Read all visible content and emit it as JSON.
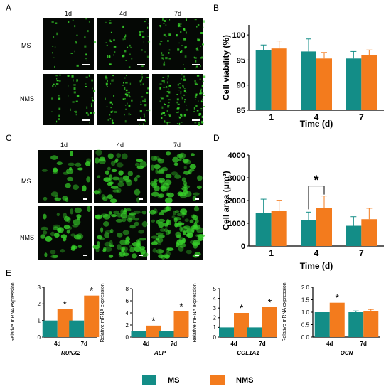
{
  "panel_letters": {
    "A": "A",
    "B": "B",
    "C": "C",
    "D": "D",
    "E": "E"
  },
  "panel_a": {
    "col_labels": [
      "1d",
      "4d",
      "7d"
    ],
    "row_labels": [
      "MS",
      "NMS"
    ]
  },
  "panel_c": {
    "col_labels": [
      "1d",
      "4d",
      "7d"
    ],
    "row_labels": [
      "MS",
      "NMS"
    ]
  },
  "colors": {
    "ms": "#138d87",
    "nms": "#f37b1d",
    "cell_green": "#37d22a"
  },
  "legend": {
    "ms": "MS",
    "nms": "NMS"
  },
  "chart_data": [
    {
      "panel": "B",
      "type": "bar",
      "categories": [
        "1",
        "4",
        "7"
      ],
      "series": [
        {
          "name": "MS",
          "values": [
            97.0,
            96.7,
            95.3
          ],
          "errors": [
            1.0,
            2.5,
            1.4
          ]
        },
        {
          "name": "NMS",
          "values": [
            97.3,
            95.3,
            96.0
          ],
          "errors": [
            1.5,
            1.2,
            1.0
          ]
        }
      ],
      "xlabel": "Time (d)",
      "ylabel": "Cell viability (%)",
      "ylim": [
        85,
        102
      ],
      "yticks": [
        85,
        90,
        95,
        100
      ]
    },
    {
      "panel": "D",
      "type": "bar",
      "categories": [
        "1",
        "4",
        "7"
      ],
      "series": [
        {
          "name": "MS",
          "values": [
            1460,
            1140,
            890
          ],
          "errors": [
            600,
            350,
            400
          ]
        },
        {
          "name": "NMS",
          "values": [
            1560,
            1680,
            1180
          ],
          "errors": [
            450,
            520,
            480
          ]
        }
      ],
      "xlabel": "Time (d)",
      "ylabel": "Cell area (μm²)",
      "ylim": [
        0,
        4000
      ],
      "yticks": [
        0,
        1000,
        2000,
        3000,
        4000
      ],
      "annotations": [
        {
          "category": "4",
          "text": "*"
        }
      ]
    },
    {
      "panel": "E",
      "type": "bar",
      "gene": "RUNX2",
      "categories": [
        "4d",
        "7d"
      ],
      "series": [
        {
          "name": "MS",
          "values": [
            1.0,
            1.0
          ]
        },
        {
          "name": "NMS",
          "values": [
            1.7,
            2.5
          ]
        }
      ],
      "ylabel": "Relative mRNA expression",
      "ylim": [
        0,
        3
      ],
      "yticks": [
        0,
        1,
        2,
        3
      ],
      "annotations": [
        {
          "category": "4d",
          "text": "*"
        },
        {
          "category": "7d",
          "text": "*"
        }
      ]
    },
    {
      "panel": "E",
      "type": "bar",
      "gene": "ALP",
      "categories": [
        "4d",
        "7d"
      ],
      "series": [
        {
          "name": "MS",
          "values": [
            1.0,
            1.0
          ]
        },
        {
          "name": "NMS",
          "values": [
            1.9,
            4.3
          ]
        }
      ],
      "ylabel": "Relative mRNA expression",
      "ylim": [
        0,
        8
      ],
      "yticks": [
        0,
        2,
        4,
        6,
        8
      ],
      "annotations": [
        {
          "category": "4d",
          "text": "*"
        },
        {
          "category": "7d",
          "text": "*"
        }
      ]
    },
    {
      "panel": "E",
      "type": "bar",
      "gene": "COL1A1",
      "categories": [
        "4d",
        "7d"
      ],
      "series": [
        {
          "name": "MS",
          "values": [
            1.0,
            1.0
          ]
        },
        {
          "name": "NMS",
          "values": [
            2.5,
            3.1
          ]
        }
      ],
      "ylabel": "Relative mRNA expression",
      "ylim": [
        0,
        5
      ],
      "yticks": [
        0,
        1,
        2,
        3,
        4,
        5
      ],
      "annotations": [
        {
          "category": "4d",
          "text": "*"
        },
        {
          "category": "7d",
          "text": "*"
        }
      ]
    },
    {
      "panel": "E",
      "type": "bar",
      "gene": "OCN",
      "categories": [
        "4d",
        "7d"
      ],
      "series": [
        {
          "name": "MS",
          "values": [
            1.0,
            1.0
          ],
          "errors": [
            0,
            0.05
          ]
        },
        {
          "name": "NMS",
          "values": [
            1.38,
            1.05
          ],
          "errors": [
            0,
            0.06
          ]
        }
      ],
      "ylabel": "Relative mRNA expression",
      "ylim": [
        0,
        2
      ],
      "yticks": [
        0.0,
        0.5,
        1.0,
        1.5,
        2.0
      ],
      "annotations": [
        {
          "category": "4d",
          "text": "*"
        }
      ]
    }
  ]
}
